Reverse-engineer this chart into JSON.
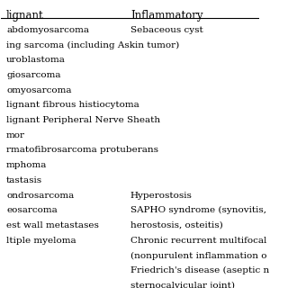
{
  "col1_header": "lignant",
  "col2_header": "Inflammatory",
  "col1_rows": [
    "abdomyosarcoma",
    "ing sarcoma (including Askin tumor)",
    "uroblastoma",
    "giosarcoma",
    "omyosarcoma",
    "lignant fibrous histiocytoma",
    "lignant Peripheral Nerve Sheath",
    "mor",
    "rmatofibrosarcoma protuberans",
    "mphoma",
    "tastasis",
    "ondrosarcoma",
    "eosarcoma",
    "est wall metastases",
    "ltiple myeloma"
  ],
  "col2_rows": [
    "Sebaceous cyst",
    "",
    "",
    "",
    "",
    "",
    "",
    "",
    "",
    "",
    "",
    "Hyperostosis",
    "SAPHO syndrome (synovitis,",
    "herostosis, osteitis)",
    "Chronic recurrent multifocal"
  ],
  "col2_extra": [
    "(nonpurulent inflammation o",
    "Friedrich's disease (aseptic n",
    "sternocalvicular joint)"
  ],
  "background_color": "#ffffff",
  "font_size": 7.5,
  "header_font_size": 8.5,
  "line_color": "#000000",
  "text_color": "#000000"
}
